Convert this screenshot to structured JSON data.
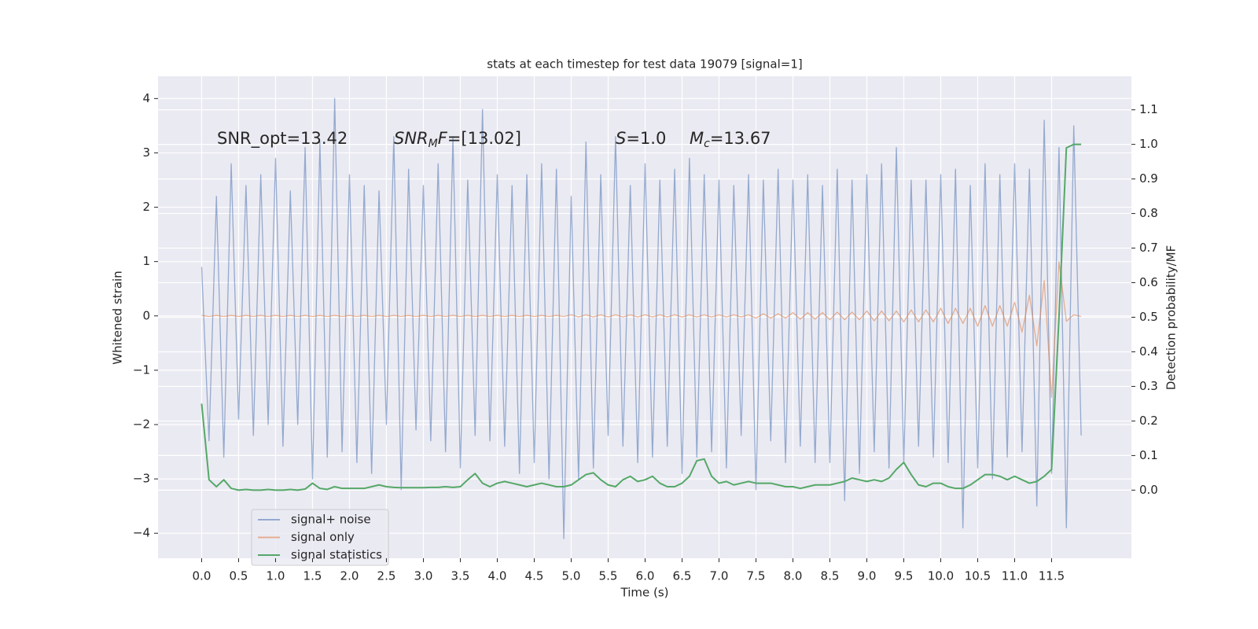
{
  "chart_data": {
    "type": "line",
    "title": "stats at each timestep for test data 19079 [signal=1]",
    "xlabel": "Time (s)",
    "ylabel": "Whitened strain",
    "y2label": "Detection probability/MF",
    "annotations": [
      [
        {
          "text": "SNR_opt=13.42",
          "style": "normal"
        }
      ],
      [
        {
          "text": "SNR",
          "style": "italic"
        },
        {
          "text": "M",
          "style": "sub"
        },
        {
          "text": "F",
          "style": "italic"
        },
        {
          "text": "=[13.02]",
          "style": "normal"
        }
      ],
      [
        {
          "text": "S",
          "style": "italic"
        },
        {
          "text": "=1.0",
          "style": "normal"
        }
      ],
      [
        {
          "text": "M",
          "style": "italic"
        },
        {
          "text": "c",
          "style": "sub"
        },
        {
          "text": "=13.67",
          "style": "normal"
        }
      ]
    ],
    "x": [
      0.0,
      0.1,
      0.2,
      0.3,
      0.4,
      0.5,
      0.6,
      0.7,
      0.8,
      0.9,
      1.0,
      1.1,
      1.2,
      1.3,
      1.4,
      1.5,
      1.6,
      1.7,
      1.8,
      1.9,
      2.0,
      2.1,
      2.2,
      2.3,
      2.4,
      2.5,
      2.6,
      2.7,
      2.8,
      2.9,
      3.0,
      3.1,
      3.2,
      3.3,
      3.4,
      3.5,
      3.6,
      3.7,
      3.8,
      3.9,
      4.0,
      4.1,
      4.2,
      4.3,
      4.4,
      4.5,
      4.6,
      4.7,
      4.8,
      4.9,
      5.0,
      5.1,
      5.2,
      5.3,
      5.4,
      5.5,
      5.6,
      5.7,
      5.8,
      5.9,
      6.0,
      6.1,
      6.2,
      6.3,
      6.4,
      6.5,
      6.6,
      6.7,
      6.8,
      6.9,
      7.0,
      7.1,
      7.2,
      7.3,
      7.4,
      7.5,
      7.6,
      7.7,
      7.8,
      7.9,
      8.0,
      8.1,
      8.2,
      8.3,
      8.4,
      8.5,
      8.6,
      8.7,
      8.8,
      8.9,
      9.0,
      9.1,
      9.2,
      9.3,
      9.4,
      9.5,
      9.6,
      9.7,
      9.8,
      9.9,
      10.0,
      10.1,
      10.2,
      10.3,
      10.4,
      10.5,
      10.6,
      10.7,
      10.8,
      10.9,
      11.0,
      11.1,
      11.2,
      11.3,
      11.4,
      11.5,
      11.6,
      11.7,
      11.8,
      11.9
    ],
    "series": [
      {
        "name": "signal+ noise",
        "color": "#4c72b0",
        "alpha": 0.55,
        "axis": "y",
        "values": [
          0.9,
          -2.3,
          2.2,
          -2.6,
          2.8,
          -1.9,
          2.4,
          -2.2,
          2.6,
          -2.0,
          2.9,
          -2.4,
          2.3,
          -2.0,
          3.1,
          -3.0,
          3.2,
          -2.6,
          4.0,
          -2.5,
          2.6,
          -2.7,
          2.4,
          -2.9,
          2.3,
          -2.0,
          3.3,
          -3.2,
          2.7,
          -2.1,
          2.4,
          -2.3,
          2.8,
          -2.5,
          3.3,
          -2.8,
          2.5,
          -2.2,
          3.8,
          -2.3,
          2.6,
          -2.4,
          2.4,
          -2.9,
          2.6,
          -2.7,
          2.8,
          -3.0,
          2.7,
          -4.1,
          2.2,
          -3.0,
          3.2,
          -2.8,
          2.6,
          -2.2,
          3.3,
          -2.4,
          2.4,
          -2.7,
          2.8,
          -2.6,
          2.5,
          -2.4,
          2.7,
          -2.9,
          2.9,
          -2.6,
          2.6,
          -2.5,
          2.5,
          -2.8,
          2.4,
          -2.2,
          2.6,
          -3.2,
          2.5,
          -2.3,
          2.7,
          -2.7,
          2.5,
          -2.4,
          2.6,
          -2.7,
          2.4,
          -2.7,
          2.7,
          -3.4,
          2.5,
          -2.9,
          2.6,
          -2.5,
          2.8,
          -2.8,
          3.1,
          -2.7,
          2.5,
          -2.4,
          2.5,
          -2.6,
          2.6,
          -2.7,
          2.7,
          -3.9,
          2.4,
          -2.8,
          2.8,
          -3.0,
          2.6,
          -2.6,
          2.8,
          -2.5,
          2.7,
          -3.5,
          3.6,
          -2.9,
          3.1,
          -3.9,
          3.5,
          -2.2
        ]
      },
      {
        "name": "signal only",
        "color": "#dd8452",
        "alpha": 0.6,
        "axis": "y",
        "values": [
          0.01,
          -0.01,
          0.01,
          -0.01,
          0.01,
          -0.01,
          0.01,
          -0.01,
          0.01,
          -0.01,
          0.01,
          -0.01,
          0.01,
          -0.01,
          0.01,
          -0.01,
          0.01,
          -0.01,
          0.01,
          -0.01,
          0.01,
          -0.01,
          0.01,
          -0.01,
          0.01,
          -0.01,
          0.01,
          -0.01,
          0.01,
          -0.01,
          0.01,
          -0.01,
          0.01,
          -0.01,
          0.01,
          -0.01,
          0.01,
          -0.01,
          0.01,
          -0.01,
          0.01,
          -0.01,
          0.01,
          -0.01,
          0.01,
          -0.01,
          0.01,
          -0.01,
          0.01,
          -0.01,
          0.02,
          -0.02,
          0.02,
          -0.02,
          0.02,
          -0.02,
          0.02,
          -0.02,
          0.02,
          -0.02,
          0.02,
          -0.02,
          0.02,
          -0.02,
          0.02,
          -0.02,
          0.02,
          -0.02,
          0.02,
          -0.02,
          0.02,
          -0.02,
          0.02,
          -0.02,
          0.02,
          -0.04,
          0.04,
          -0.04,
          0.04,
          -0.04,
          0.06,
          -0.06,
          0.06,
          -0.06,
          0.06,
          -0.07,
          0.07,
          -0.07,
          0.07,
          -0.07,
          0.09,
          -0.09,
          0.09,
          -0.09,
          0.09,
          -0.11,
          0.11,
          -0.11,
          0.11,
          -0.11,
          0.14,
          -0.14,
          0.14,
          -0.14,
          0.14,
          -0.19,
          0.19,
          -0.19,
          0.19,
          -0.19,
          0.25,
          -0.3,
          0.38,
          -0.55,
          0.65,
          -1.5,
          1.0,
          -0.1,
          0.02,
          -0.01
        ]
      },
      {
        "name": "signal statistics",
        "color": "#55a868",
        "alpha": 1,
        "axis": "y2",
        "values": [
          0.25,
          0.03,
          0.01,
          0.03,
          0.005,
          0.0,
          0.002,
          0.0,
          0.0,
          0.002,
          0.0,
          0.0,
          0.002,
          0.0,
          0.003,
          0.02,
          0.005,
          0.002,
          0.01,
          0.005,
          0.005,
          0.005,
          0.005,
          0.01,
          0.015,
          0.01,
          0.008,
          0.007,
          0.007,
          0.007,
          0.007,
          0.008,
          0.008,
          0.01,
          0.008,
          0.01,
          0.03,
          0.048,
          0.02,
          0.01,
          0.02,
          0.025,
          0.02,
          0.015,
          0.01,
          0.015,
          0.02,
          0.015,
          0.01,
          0.01,
          0.015,
          0.03,
          0.045,
          0.05,
          0.03,
          0.015,
          0.01,
          0.03,
          0.04,
          0.025,
          0.03,
          0.04,
          0.02,
          0.01,
          0.01,
          0.02,
          0.04,
          0.085,
          0.09,
          0.04,
          0.02,
          0.025,
          0.015,
          0.02,
          0.025,
          0.02,
          0.02,
          0.02,
          0.015,
          0.01,
          0.01,
          0.005,
          0.01,
          0.015,
          0.015,
          0.015,
          0.02,
          0.025,
          0.035,
          0.03,
          0.025,
          0.03,
          0.025,
          0.035,
          0.06,
          0.08,
          0.045,
          0.015,
          0.01,
          0.02,
          0.02,
          0.01,
          0.005,
          0.005,
          0.015,
          0.03,
          0.045,
          0.045,
          0.04,
          0.03,
          0.04,
          0.03,
          0.02,
          0.025,
          0.04,
          0.06,
          0.5,
          0.99,
          1.0,
          1.0
        ]
      }
    ],
    "xlim": [
      -0.59,
      12.58
    ],
    "ylim": [
      -4.46,
      4.41
    ],
    "y2lim": [
      -0.197,
      1.197
    ],
    "xticks": [
      {
        "value": 0,
        "label": "0.0"
      },
      0.5,
      {
        "value": 1,
        "label": "1.0"
      },
      1.5,
      {
        "value": 2,
        "label": "2.0"
      },
      2.5,
      {
        "value": 3,
        "label": "3.0"
      },
      3.5,
      {
        "value": 4,
        "label": "4.0"
      },
      4.5,
      {
        "value": 5,
        "label": "5.0"
      },
      5.5,
      {
        "value": 6,
        "label": "6.0"
      },
      6.5,
      {
        "value": 7,
        "label": "7.0"
      },
      7.5,
      {
        "value": 8,
        "label": "8.0"
      },
      8.5,
      {
        "value": 9,
        "label": "9.0"
      },
      9.5,
      {
        "value": 10,
        "label": "10.0"
      },
      10.5,
      {
        "value": 11,
        "label": "11.0"
      },
      11.5
    ],
    "yticks": [
      {
        "value": -4,
        "label": "−4"
      },
      {
        "value": -3,
        "label": "−3"
      },
      {
        "value": -2,
        "label": "−2"
      },
      {
        "value": -1,
        "label": "−1"
      },
      0,
      1,
      2,
      3,
      4
    ],
    "y2ticks": [
      {
        "value": 0,
        "label": "0.0"
      },
      0.1,
      0.2,
      0.3,
      0.4,
      0.5,
      0.6,
      0.7,
      0.8,
      0.9,
      {
        "value": 1,
        "label": "1.0"
      },
      1.1
    ],
    "grid": true,
    "legend": "lower left"
  }
}
